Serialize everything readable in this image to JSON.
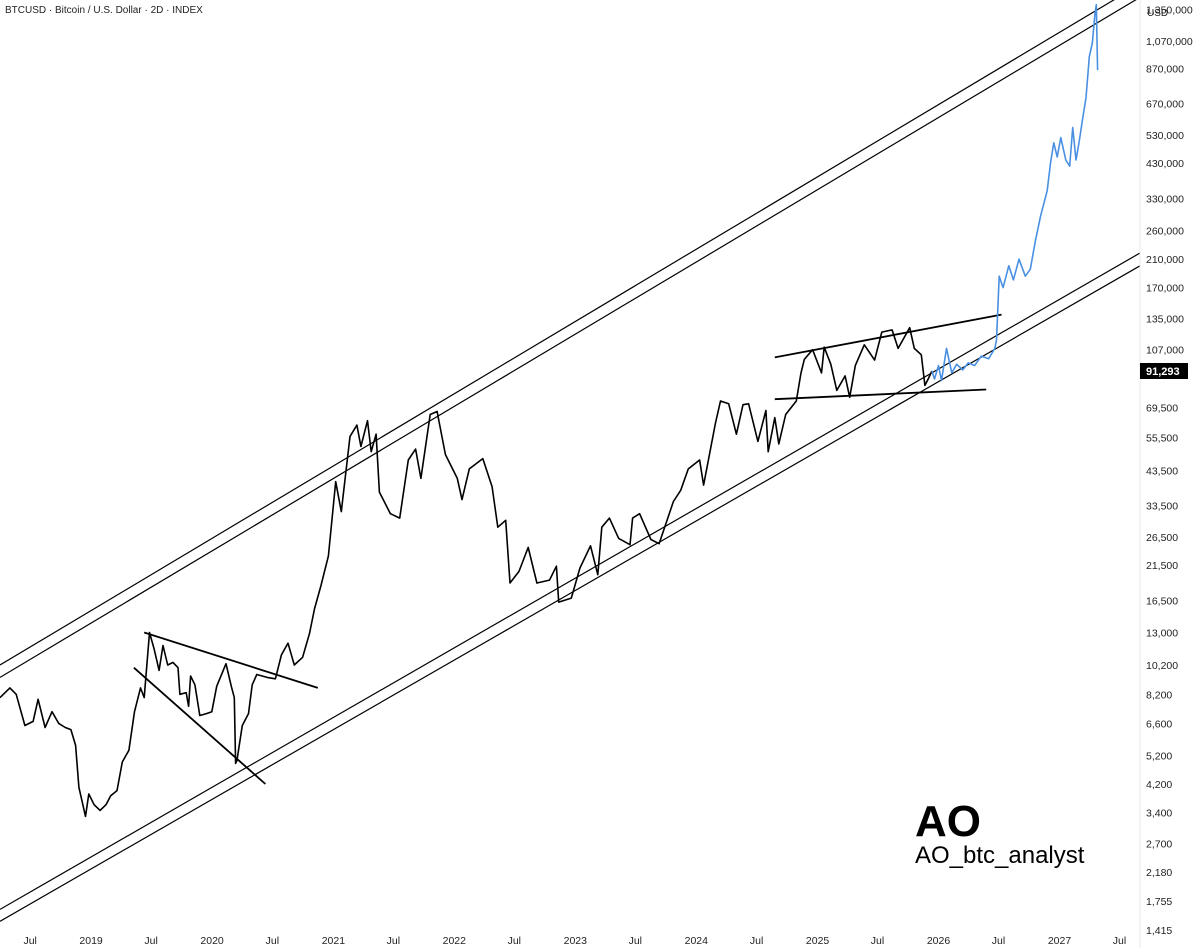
{
  "header": {
    "title": "BTCUSD · Bitcoin / U.S. Dollar · 2D · INDEX"
  },
  "watermark": {
    "big": "AO",
    "handle": "AO_btc_analyst"
  },
  "last_price_label": "91,293",
  "colors": {
    "history": "#000000",
    "projection": "#4a90e2",
    "channel": "#000000",
    "price_label_bg": "#000000"
  },
  "chart_data": {
    "type": "line",
    "y_scale": "log",
    "y_unit": "USD",
    "ylim": [
      1415,
      1450000
    ],
    "xlim": [
      "2018-04-01",
      "2027-09-01"
    ],
    "yticks": [
      1350000,
      1070000,
      870000,
      670000,
      530000,
      430000,
      330000,
      260000,
      210000,
      170000,
      135000,
      107000,
      69500,
      55500,
      43500,
      33500,
      26500,
      21500,
      16500,
      13000,
      10200,
      8200,
      6600,
      5200,
      4200,
      3400,
      2700,
      2180,
      1755,
      1415
    ],
    "ytick_labels": [
      "1,350,000",
      "1,070,000",
      "870,000",
      "670,000",
      "530,000",
      "430,000",
      "330,000",
      "260,000",
      "210,000",
      "170,000",
      "135,000",
      "107,000",
      "69,500",
      "55,500",
      "43,500",
      "33,500",
      "26,500",
      "21,500",
      "16,500",
      "13,000",
      "10,200",
      "8,200",
      "6,600",
      "5,200",
      "4,200",
      "3,400",
      "2,700",
      "2,180",
      "1,755",
      "1,415"
    ],
    "xticks": [
      {
        "date": "2018-07-01",
        "label": "Jul"
      },
      {
        "date": "2019-01-01",
        "label": "2019"
      },
      {
        "date": "2019-07-01",
        "label": "Jul"
      },
      {
        "date": "2020-01-01",
        "label": "2020"
      },
      {
        "date": "2020-07-01",
        "label": "Jul"
      },
      {
        "date": "2021-01-01",
        "label": "2021"
      },
      {
        "date": "2021-07-01",
        "label": "Jul"
      },
      {
        "date": "2022-01-01",
        "label": "2022"
      },
      {
        "date": "2022-07-01",
        "label": "Jul"
      },
      {
        "date": "2023-01-01",
        "label": "2023"
      },
      {
        "date": "2023-07-01",
        "label": "Jul"
      },
      {
        "date": "2024-01-01",
        "label": "2024"
      },
      {
        "date": "2024-07-01",
        "label": "Jul"
      },
      {
        "date": "2025-01-01",
        "label": "2025"
      },
      {
        "date": "2025-07-01",
        "label": "Jul"
      },
      {
        "date": "2026-01-01",
        "label": "2026"
      },
      {
        "date": "2026-07-01",
        "label": "Jul"
      },
      {
        "date": "2027-01-01",
        "label": "2027"
      },
      {
        "date": "2027-07-01",
        "label": "Jul"
      }
    ],
    "series": [
      {
        "id": "history",
        "points": [
          [
            "2018-04-01",
            8000
          ],
          [
            "2018-05-01",
            8600
          ],
          [
            "2018-05-20",
            8200
          ],
          [
            "2018-06-15",
            6500
          ],
          [
            "2018-07-10",
            6700
          ],
          [
            "2018-07-25",
            7900
          ],
          [
            "2018-08-15",
            6400
          ],
          [
            "2018-09-05",
            7200
          ],
          [
            "2018-09-25",
            6600
          ],
          [
            "2018-10-15",
            6400
          ],
          [
            "2018-11-01",
            6300
          ],
          [
            "2018-11-15",
            5600
          ],
          [
            "2018-11-25",
            4100
          ],
          [
            "2018-12-15",
            3300
          ],
          [
            "2018-12-25",
            3900
          ],
          [
            "2019-01-10",
            3600
          ],
          [
            "2019-01-28",
            3450
          ],
          [
            "2019-02-15",
            3600
          ],
          [
            "2019-03-01",
            3850
          ],
          [
            "2019-03-20",
            4000
          ],
          [
            "2019-04-05",
            4950
          ],
          [
            "2019-04-25",
            5400
          ],
          [
            "2019-05-12",
            7200
          ],
          [
            "2019-05-30",
            8600
          ],
          [
            "2019-06-10",
            8000
          ],
          [
            "2019-06-26",
            13000
          ],
          [
            "2019-07-10",
            11500
          ],
          [
            "2019-07-25",
            9800
          ],
          [
            "2019-08-06",
            11800
          ],
          [
            "2019-08-20",
            10200
          ],
          [
            "2019-09-05",
            10400
          ],
          [
            "2019-09-20",
            10000
          ],
          [
            "2019-09-26",
            8200
          ],
          [
            "2019-10-15",
            8300
          ],
          [
            "2019-10-22",
            7500
          ],
          [
            "2019-10-28",
            9400
          ],
          [
            "2019-11-10",
            8800
          ],
          [
            "2019-11-25",
            7000
          ],
          [
            "2019-12-15",
            7100
          ],
          [
            "2019-12-31",
            7200
          ],
          [
            "2020-01-15",
            8700
          ],
          [
            "2020-02-12",
            10300
          ],
          [
            "2020-02-28",
            8700
          ],
          [
            "2020-03-08",
            8000
          ],
          [
            "2020-03-12",
            4900
          ],
          [
            "2020-03-16",
            5000
          ],
          [
            "2020-04-01",
            6500
          ],
          [
            "2020-04-20",
            7100
          ],
          [
            "2020-05-01",
            8800
          ],
          [
            "2020-05-15",
            9500
          ],
          [
            "2020-06-15",
            9300
          ],
          [
            "2020-07-10",
            9200
          ],
          [
            "2020-07-28",
            11000
          ],
          [
            "2020-08-17",
            12000
          ],
          [
            "2020-09-05",
            10200
          ],
          [
            "2020-09-30",
            10800
          ],
          [
            "2020-10-21",
            12900
          ],
          [
            "2020-11-05",
            15500
          ],
          [
            "2020-11-25",
            18500
          ],
          [
            "2020-12-17",
            23000
          ],
          [
            "2021-01-08",
            40000
          ],
          [
            "2021-01-25",
            32000
          ],
          [
            "2021-02-20",
            56000
          ],
          [
            "2021-03-13",
            61000
          ],
          [
            "2021-03-25",
            52000
          ],
          [
            "2021-04-14",
            63000
          ],
          [
            "2021-04-25",
            50000
          ],
          [
            "2021-05-10",
            57000
          ],
          [
            "2021-05-20",
            37000
          ],
          [
            "2021-06-22",
            31500
          ],
          [
            "2021-07-20",
            30500
          ],
          [
            "2021-08-15",
            47000
          ],
          [
            "2021-09-06",
            51000
          ],
          [
            "2021-09-22",
            41000
          ],
          [
            "2021-10-20",
            66000
          ],
          [
            "2021-11-10",
            67500
          ],
          [
            "2021-12-05",
            49000
          ],
          [
            "2022-01-10",
            41000
          ],
          [
            "2022-01-24",
            35000
          ],
          [
            "2022-02-15",
            44000
          ],
          [
            "2022-03-28",
            47500
          ],
          [
            "2022-04-25",
            38500
          ],
          [
            "2022-05-12",
            28500
          ],
          [
            "2022-06-05",
            30000
          ],
          [
            "2022-06-18",
            18800
          ],
          [
            "2022-07-15",
            20500
          ],
          [
            "2022-08-12",
            24500
          ],
          [
            "2022-09-07",
            18800
          ],
          [
            "2022-10-15",
            19200
          ],
          [
            "2022-11-05",
            21300
          ],
          [
            "2022-11-12",
            16300
          ],
          [
            "2022-12-20",
            16800
          ],
          [
            "2023-01-15",
            21000
          ],
          [
            "2023-02-16",
            24800
          ],
          [
            "2023-03-10",
            20000
          ],
          [
            "2023-03-22",
            28500
          ],
          [
            "2023-04-14",
            30500
          ],
          [
            "2023-05-12",
            26200
          ],
          [
            "2023-06-15",
            25000
          ],
          [
            "2023-06-23",
            30500
          ],
          [
            "2023-07-14",
            31500
          ],
          [
            "2023-08-17",
            26000
          ],
          [
            "2023-09-11",
            25200
          ],
          [
            "2023-10-24",
            34500
          ],
          [
            "2023-11-15",
            37500
          ],
          [
            "2023-12-08",
            44000
          ],
          [
            "2024-01-11",
            47000
          ],
          [
            "2024-01-23",
            39000
          ],
          [
            "2024-02-28",
            62000
          ],
          [
            "2024-03-14",
            73000
          ],
          [
            "2024-04-08",
            71500
          ],
          [
            "2024-05-01",
            57000
          ],
          [
            "2024-05-21",
            71000
          ],
          [
            "2024-06-07",
            71500
          ],
          [
            "2024-07-05",
            54000
          ],
          [
            "2024-07-29",
            68000
          ],
          [
            "2024-08-05",
            50000
          ],
          [
            "2024-08-25",
            64500
          ],
          [
            "2024-09-06",
            53000
          ],
          [
            "2024-09-27",
            66000
          ],
          [
            "2024-10-29",
            73000
          ],
          [
            "2024-11-12",
            90000
          ],
          [
            "2024-11-22",
            99500
          ],
          [
            "2024-12-17",
            107000
          ],
          [
            "2025-01-13",
            90000
          ],
          [
            "2025-01-21",
            109000
          ],
          [
            "2025-02-10",
            96000
          ],
          [
            "2025-02-28",
            79000
          ],
          [
            "2025-03-25",
            88000
          ],
          [
            "2025-04-08",
            75000
          ],
          [
            "2025-04-25",
            95000
          ],
          [
            "2025-05-22",
            111000
          ],
          [
            "2025-06-22",
            99000
          ],
          [
            "2025-07-14",
            122000
          ],
          [
            "2025-08-14",
            124000
          ],
          [
            "2025-09-01",
            108000
          ],
          [
            "2025-10-06",
            126000
          ],
          [
            "2025-10-20",
            108000
          ],
          [
            "2025-11-10",
            103000
          ],
          [
            "2025-11-21",
            82000
          ],
          [
            "2025-12-01",
            86000
          ],
          [
            "2025-12-12",
            91293
          ]
        ]
      },
      {
        "id": "projection",
        "points": [
          [
            "2025-12-12",
            91293
          ],
          [
            "2025-12-20",
            86000
          ],
          [
            "2026-01-01",
            95000
          ],
          [
            "2026-01-10",
            85000
          ],
          [
            "2026-01-25",
            108000
          ],
          [
            "2026-02-10",
            90000
          ],
          [
            "2026-02-25",
            96000
          ],
          [
            "2026-03-15",
            92000
          ],
          [
            "2026-04-01",
            97000
          ],
          [
            "2026-04-20",
            95000
          ],
          [
            "2026-05-10",
            102000
          ],
          [
            "2026-06-01",
            100000
          ],
          [
            "2026-06-20",
            108000
          ],
          [
            "2026-06-25",
            115000
          ],
          [
            "2026-07-03",
            185000
          ],
          [
            "2026-07-15",
            170000
          ],
          [
            "2026-08-01",
            200000
          ],
          [
            "2026-08-15",
            180000
          ],
          [
            "2026-09-01",
            210000
          ],
          [
            "2026-09-20",
            185000
          ],
          [
            "2026-10-05",
            195000
          ],
          [
            "2026-10-20",
            240000
          ],
          [
            "2026-11-05",
            290000
          ],
          [
            "2026-11-25",
            350000
          ],
          [
            "2026-12-05",
            430000
          ],
          [
            "2026-12-15",
            500000
          ],
          [
            "2026-12-25",
            450000
          ],
          [
            "2027-01-05",
            520000
          ],
          [
            "2027-01-20",
            440000
          ],
          [
            "2027-02-01",
            420000
          ],
          [
            "2027-02-10",
            560000
          ],
          [
            "2027-02-20",
            440000
          ],
          [
            "2027-03-01",
            500000
          ],
          [
            "2027-03-12",
            600000
          ],
          [
            "2027-03-22",
            700000
          ],
          [
            "2027-04-01",
            950000
          ],
          [
            "2027-04-10",
            1050000
          ],
          [
            "2027-04-18",
            1300000
          ],
          [
            "2027-04-22",
            1400000
          ],
          [
            "2027-04-26",
            860000
          ]
        ]
      }
    ],
    "trendlines": [
      {
        "id": "channel-upper-a",
        "from": [
          "2018-04-01",
          9300
        ],
        "to": [
          "2027-09-01",
          1480000
        ]
      },
      {
        "id": "channel-upper-b",
        "from": [
          "2018-04-01",
          10200
        ],
        "to": [
          "2027-09-01",
          1630000
        ]
      },
      {
        "id": "channel-lower-a",
        "from": [
          "2018-04-01",
          1510
        ],
        "to": [
          "2027-09-01",
          200000
        ]
      },
      {
        "id": "channel-lower-b",
        "from": [
          "2018-04-01",
          1650
        ],
        "to": [
          "2027-09-01",
          220000
        ]
      },
      {
        "id": "triangle-upper",
        "from": [
          "2019-06-10",
          13000
        ],
        "to": [
          "2020-11-15",
          8600
        ]
      },
      {
        "id": "triangle-lower",
        "from": [
          "2019-05-10",
          10000
        ],
        "to": [
          "2020-06-10",
          4200
        ]
      },
      {
        "id": "broadening-upper",
        "from": [
          "2024-08-25",
          101000
        ],
        "to": [
          "2026-07-10",
          139000
        ]
      },
      {
        "id": "broadening-lower",
        "from": [
          "2024-08-25",
          74000
        ],
        "to": [
          "2026-05-25",
          79500
        ]
      }
    ]
  }
}
